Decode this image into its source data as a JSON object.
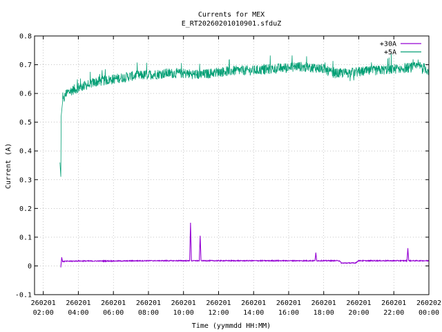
{
  "chart_data": {
    "type": "line",
    "title": "Currents for MEX",
    "subtitle": "E_RT20260201010901.sfduZ",
    "xlabel": "Time (yymmdd HH:MM)",
    "ylabel": "Current (A)",
    "ylim": [
      -0.1,
      0.8
    ],
    "yticks": [
      -0.1,
      0,
      0.1,
      0.2,
      0.3,
      0.4,
      0.5,
      0.6,
      0.7,
      0.8
    ],
    "ytick_labels": [
      "-0.1",
      "0",
      "0.1",
      "0.2",
      "0.3",
      "0.4",
      "0.5",
      "0.6",
      "0.7",
      "0.8"
    ],
    "xlim_hours": [
      1.5,
      24.0
    ],
    "xticks": [
      {
        "h": 2,
        "date": "260201",
        "time": "02:00"
      },
      {
        "h": 4,
        "date": "260201",
        "time": "04:00"
      },
      {
        "h": 6,
        "date": "260201",
        "time": "06:00"
      },
      {
        "h": 8,
        "date": "260201",
        "time": "08:00"
      },
      {
        "h": 10,
        "date": "260201",
        "time": "10:00"
      },
      {
        "h": 12,
        "date": "260201",
        "time": "12:00"
      },
      {
        "h": 14,
        "date": "260201",
        "time": "14:00"
      },
      {
        "h": 16,
        "date": "260201",
        "time": "16:00"
      },
      {
        "h": 18,
        "date": "260201",
        "time": "18:00"
      },
      {
        "h": 20,
        "date": "260201",
        "time": "20:00"
      },
      {
        "h": 22,
        "date": "260201",
        "time": "22:00"
      },
      {
        "h": 24,
        "date": "260202",
        "time": "00:00"
      }
    ],
    "grid": true,
    "legend_position": "top-right",
    "series": [
      {
        "name": "+30A",
        "color": "#9400d3",
        "x_hours": [
          3.0,
          3.05,
          3.1,
          3.2,
          4.0,
          6.0,
          8.0,
          10.0,
          10.35,
          10.4,
          10.45,
          10.9,
          10.95,
          11.0,
          12.0,
          14.0,
          16.0,
          17.5,
          17.55,
          17.6,
          18.0,
          18.9,
          19.0,
          19.8,
          20.0,
          20.2,
          22.0,
          22.75,
          22.8,
          22.85,
          24.0
        ],
        "values": [
          -0.005,
          0.03,
          0.015,
          0.016,
          0.017,
          0.017,
          0.018,
          0.018,
          0.018,
          0.15,
          0.018,
          0.018,
          0.105,
          0.018,
          0.018,
          0.018,
          0.018,
          0.018,
          0.045,
          0.018,
          0.018,
          0.018,
          0.01,
          0.01,
          0.018,
          0.018,
          0.018,
          0.018,
          0.062,
          0.018,
          0.018
        ]
      },
      {
        "name": "+5A",
        "color": "#009e73",
        "x_hours": [
          2.95,
          3.0,
          3.02,
          3.05,
          3.1,
          3.3,
          3.6,
          4.0,
          4.5,
          5.0,
          6.0,
          7.0,
          8.0,
          9.0,
          10.0,
          11.0,
          12.0,
          13.0,
          14.0,
          15.0,
          16.0,
          16.5,
          17.0,
          17.5,
          18.0,
          18.5,
          19.0,
          20.0,
          21.0,
          22.0,
          23.0,
          23.5,
          24.0
        ],
        "values": [
          0.36,
          0.31,
          0.52,
          0.54,
          0.57,
          0.6,
          0.61,
          0.62,
          0.63,
          0.64,
          0.65,
          0.66,
          0.665,
          0.67,
          0.67,
          0.665,
          0.675,
          0.68,
          0.68,
          0.685,
          0.69,
          0.695,
          0.69,
          0.69,
          0.685,
          0.67,
          0.67,
          0.675,
          0.68,
          0.685,
          0.69,
          0.695,
          0.68
        ]
      }
    ]
  }
}
